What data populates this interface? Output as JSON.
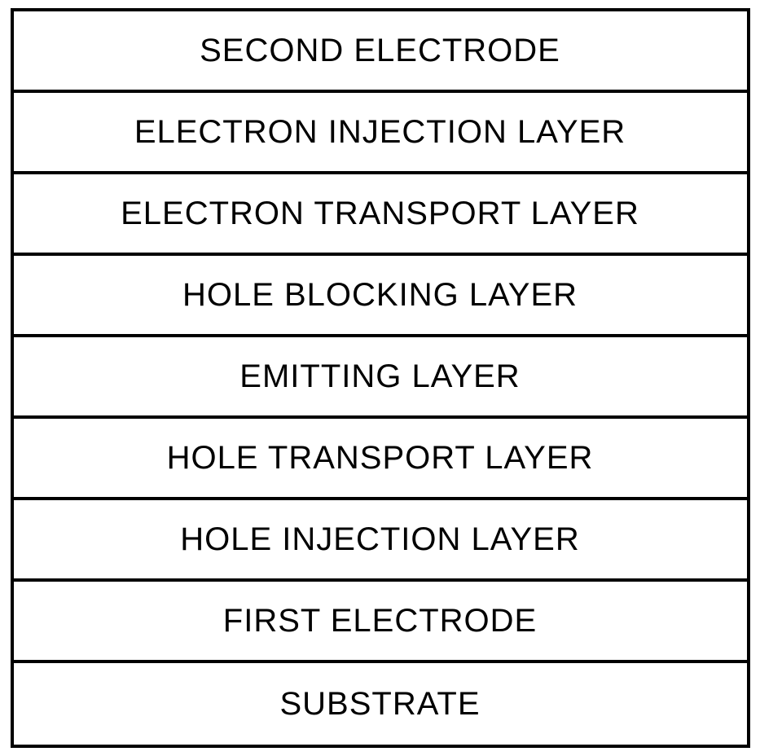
{
  "diagram": {
    "type": "layer-stack",
    "background_color": "#ffffff",
    "border_color": "#000000",
    "border_width": 4,
    "text_color": "#000000",
    "font_size": 40,
    "layer_height": 100,
    "layers": [
      {
        "label": "SECOND ELECTRODE"
      },
      {
        "label": "ELECTRON INJECTION LAYER"
      },
      {
        "label": "ELECTRON TRANSPORT LAYER"
      },
      {
        "label": "HOLE BLOCKING LAYER"
      },
      {
        "label": "EMITTING LAYER"
      },
      {
        "label": "HOLE TRANSPORT LAYER"
      },
      {
        "label": "HOLE INJECTION LAYER"
      },
      {
        "label": "FIRST ELECTRODE"
      },
      {
        "label": "SUBSTRATE"
      }
    ]
  }
}
